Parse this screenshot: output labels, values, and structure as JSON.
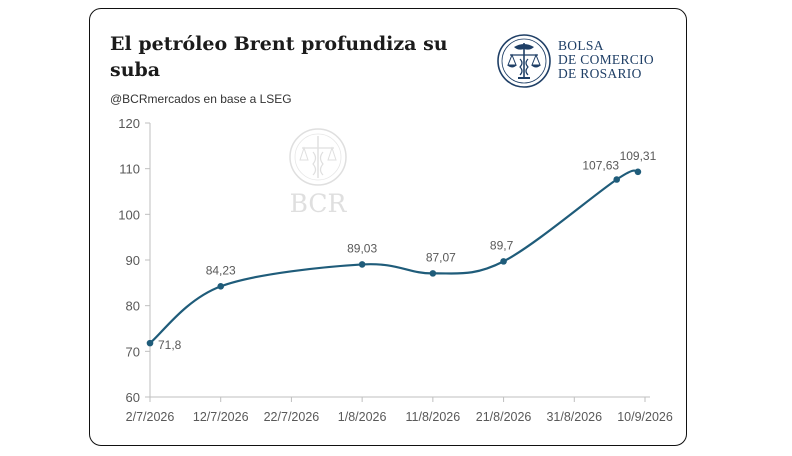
{
  "header": {
    "title": "El petróleo Brent profundiza su suba",
    "subtitle": "@BCRmercados en base a LSEG"
  },
  "logo": {
    "lines": [
      "BOLSA",
      "DE COMERCIO",
      "DE ROSARIO"
    ],
    "icon": "bcr-seal-icon",
    "color": "#1f3f66"
  },
  "watermark": {
    "text": "BCR"
  },
  "chart_data": {
    "type": "line",
    "title": "El petróleo Brent profundiza su suba",
    "xlabel": "",
    "ylabel": "",
    "x": [
      "2/7/2026",
      "12/7/2026",
      "22/7/2026",
      "1/8/2026",
      "11/8/2026",
      "21/8/2026",
      "31/8/2026",
      "10/9/2026"
    ],
    "y_ticks": [
      60,
      70,
      80,
      90,
      100,
      110,
      120
    ],
    "ylim": [
      60,
      120
    ],
    "series": [
      {
        "color": "#1f5c7a",
        "points": [
          {
            "x": "2/7/2026",
            "y": 71.8,
            "label": "71,8"
          },
          {
            "x": "12/7/2026",
            "y": 84.23,
            "label": "84,23"
          },
          {
            "x": "1/8/2026",
            "y": 89.03,
            "label": "89,03"
          },
          {
            "x": "11/8/2026",
            "y": 87.07,
            "label": "87,07"
          },
          {
            "x": "21/8/2026",
            "y": 89.7,
            "label": "89,7"
          },
          {
            "x": "6/9/2026",
            "y": 107.63,
            "label": "107,63"
          },
          {
            "x": "9/9/2026",
            "y": 109.31,
            "label": "109,31"
          }
        ]
      }
    ],
    "grid": false,
    "legend": "none"
  }
}
